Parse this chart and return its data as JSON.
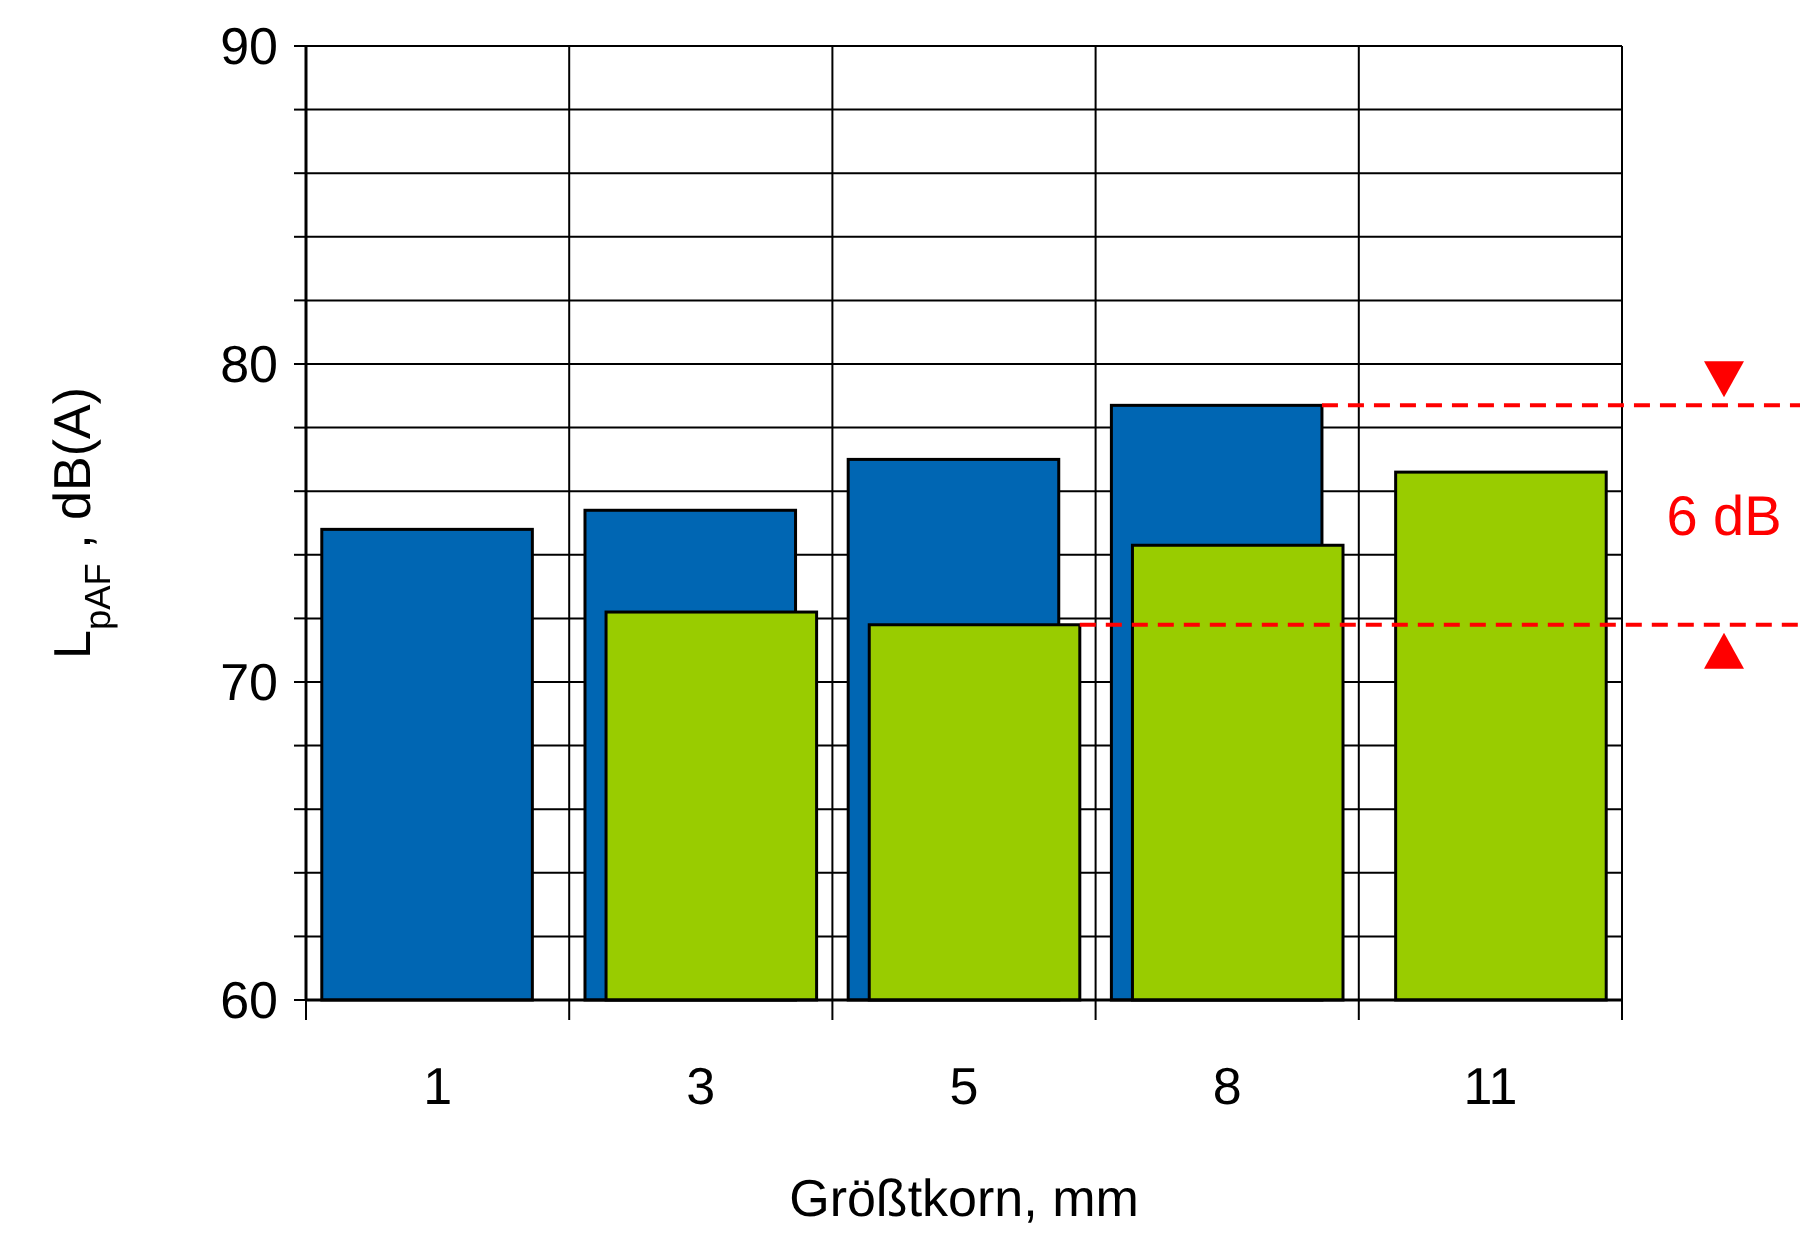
{
  "chart_data": {
    "type": "bar",
    "xlabel": "Größtkorn, mm",
    "ylabel": "L$_{pAF}$ , dB(A)",
    "categories": [
      "1",
      "3",
      "5",
      "8",
      "11"
    ],
    "series": [
      {
        "color": "#0066b3",
        "values": [
          74.8,
          75.4,
          77.0,
          78.7,
          null
        ]
      },
      {
        "color": "#99cc00",
        "values": [
          null,
          72.2,
          71.8,
          74.3,
          76.6
        ]
      }
    ],
    "ylim": [
      60,
      90
    ],
    "yticks": [
      60,
      {
        "value": 62,
        "label": null
      },
      {
        "value": 64,
        "label": null
      },
      {
        "value": 66,
        "label": null
      },
      {
        "value": 68,
        "label": null
      },
      70,
      {
        "value": 72,
        "label": null
      },
      {
        "value": 74,
        "label": null
      },
      {
        "value": 76,
        "label": null
      },
      {
        "value": 78,
        "label": null
      },
      80,
      {
        "value": 82,
        "label": null
      },
      {
        "value": 84,
        "label": null
      },
      {
        "value": 86,
        "label": null
      },
      {
        "value": 88,
        "label": null
      },
      90
    ],
    "grid": true,
    "ref_lines": [
      {
        "axis": "y",
        "value": 78.7,
        "color": "#ff0000",
        "line_style": "dashed"
      },
      {
        "axis": "y",
        "value": 71.8,
        "color": "#ff0000",
        "line_style": "dashed"
      }
    ],
    "annotations": [
      "6 dB"
    ]
  }
}
